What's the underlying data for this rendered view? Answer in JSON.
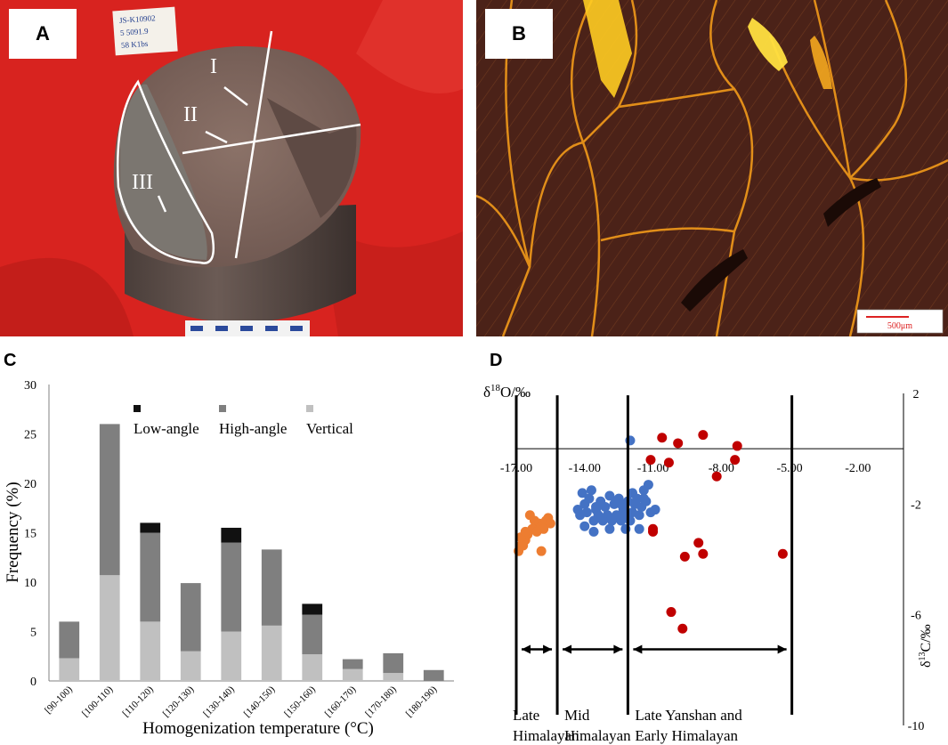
{
  "panels": {
    "A": {
      "label": "A",
      "tag_lines": [
        "JS-K10902",
        "5 5091.9",
        "58 K1bs"
      ],
      "zones": [
        "I",
        "II",
        "III"
      ]
    },
    "B": {
      "label": "B",
      "scale_bar": "500μm"
    },
    "C": {
      "label": "C"
    },
    "D": {
      "label": "D"
    }
  },
  "chart_data": [
    {
      "type": "bar",
      "stacked": true,
      "categories": [
        "[90-100)",
        "[100-110)",
        "[110-120)",
        "[120-130)",
        "[130-140)",
        "[140-150)",
        "[150-160)",
        "[160-170)",
        "[170-180)",
        "[180-190)"
      ],
      "series": [
        {
          "name": "Vertical",
          "color": "#c0c0c0",
          "values": [
            2.3,
            10.7,
            6.0,
            3.0,
            5.0,
            5.6,
            2.7,
            1.2,
            0.8,
            0
          ]
        },
        {
          "name": "High-angle",
          "color": "#7f7f7f",
          "values": [
            3.7,
            15.3,
            9.0,
            6.9,
            9.0,
            7.7,
            4.0,
            1.0,
            2.0,
            1.1
          ]
        },
        {
          "name": "Low-angle",
          "color": "#111111",
          "values": [
            0,
            0,
            1.0,
            0,
            1.5,
            0,
            1.1,
            0,
            0,
            0
          ]
        }
      ],
      "xlabel": "Homogenization temperature (°C)",
      "ylabel": "Frequency (%)",
      "ylim": [
        0,
        30
      ],
      "yticks": [
        "0",
        "5",
        "10",
        "15",
        "20",
        "25",
        "30"
      ],
      "legend_position": "top-center"
    },
    {
      "type": "scatter",
      "xlabel": "δ18O/‰",
      "ylabel": "δ13C/‰",
      "xlim": [
        -17,
        0
      ],
      "ylim": [
        -10,
        2
      ],
      "xtick_values": [
        -17,
        -14,
        -11,
        -8,
        -5,
        -2
      ],
      "xticks": [
        "-17.00",
        "-14.00",
        "-11.00",
        "-8.00",
        "-5.00",
        "-2.00"
      ],
      "ytick_values": [
        2,
        -2,
        -6,
        -10
      ],
      "yticks": [
        "2",
        "-2",
        "-6",
        "-10"
      ],
      "divider_x": [
        -17.0,
        -15.2,
        -12.1,
        -4.9
      ],
      "stage_labels": [
        {
          "line1": "Late",
          "line2": "Himalayan",
          "x_from": -17.0,
          "x_to": -15.2
        },
        {
          "line1": "Mid",
          "line2": "Himalayan",
          "x_from": -15.2,
          "x_to": -12.1
        },
        {
          "line1": "Late Yanshan and",
          "line2": "Early Himalayan",
          "x_from": -12.1,
          "x_to": -4.9
        }
      ],
      "series": [
        {
          "color": "#ed7d31",
          "points": [
            [
              -16.4,
              -2.4
            ],
            [
              -16.2,
              -2.6
            ],
            [
              -16.0,
              -2.7
            ],
            [
              -16.1,
              -2.9
            ],
            [
              -15.9,
              -2.8
            ],
            [
              -15.6,
              -2.5
            ],
            [
              -15.7,
              -2.6
            ],
            [
              -15.5,
              -2.7
            ],
            [
              -15.8,
              -2.9
            ],
            [
              -16.3,
              -2.9
            ],
            [
              -16.5,
              -3.1
            ],
            [
              -16.6,
              -3.3
            ],
            [
              -16.8,
              -3.5
            ],
            [
              -16.9,
              -3.7
            ],
            [
              -16.7,
              -3.5
            ],
            [
              -16.8,
              -3.2
            ],
            [
              -16.1,
              -3.0
            ],
            [
              -15.9,
              -3.7
            ],
            [
              -16.6,
              -3.0
            ]
          ]
        },
        {
          "color": "#4472c4",
          "points": [
            [
              -14.0,
              -2.0
            ],
            [
              -13.8,
              -1.8
            ],
            [
              -13.5,
              -2.2
            ],
            [
              -13.3,
              -1.9
            ],
            [
              -13.1,
              -2.1
            ],
            [
              -12.9,
              -1.7
            ],
            [
              -12.7,
              -2.0
            ],
            [
              -12.5,
              -1.8
            ],
            [
              -12.3,
              -2.2
            ],
            [
              -12.1,
              -1.9
            ],
            [
              -11.9,
              -1.6
            ],
            [
              -11.7,
              -1.8
            ],
            [
              -11.5,
              -2.1
            ],
            [
              -11.3,
              -1.9
            ],
            [
              -11.1,
              -2.3
            ],
            [
              -11.4,
              -1.5
            ],
            [
              -11.6,
              -2.4
            ],
            [
              -11.8,
              -2.0
            ],
            [
              -12.0,
              -2.6
            ],
            [
              -12.2,
              -2.4
            ],
            [
              -12.4,
              -2.6
            ],
            [
              -12.6,
              -2.4
            ],
            [
              -12.8,
              -2.6
            ],
            [
              -13.0,
              -2.4
            ],
            [
              -13.2,
              -2.6
            ],
            [
              -13.4,
              -2.4
            ],
            [
              -13.6,
              -2.6
            ],
            [
              -13.9,
              -2.3
            ],
            [
              -14.2,
              -2.4
            ],
            [
              -14.3,
              -2.2
            ],
            [
              -14.1,
              -1.6
            ],
            [
              -13.7,
              -1.5
            ],
            [
              -12.9,
              -2.9
            ],
            [
              -11.6,
              -2.9
            ],
            [
              -12.2,
              -2.9
            ],
            [
              -13.5,
              -2.1
            ],
            [
              -12.6,
              -1.9
            ],
            [
              -11.9,
              -2.3
            ],
            [
              -11.4,
              -1.8
            ],
            [
              -10.9,
              -2.2
            ],
            [
              -12.0,
              0.3
            ],
            [
              -11.2,
              -1.3
            ],
            [
              -13.6,
              -3.0
            ],
            [
              -14.0,
              -2.8
            ],
            [
              -12.4,
              -2.0
            ]
          ]
        },
        {
          "color": "#c00000",
          "points": [
            [
              -10.6,
              0.4
            ],
            [
              -9.9,
              0.2
            ],
            [
              -8.8,
              0.5
            ],
            [
              -7.3,
              0.1
            ],
            [
              -7.4,
              -0.4
            ],
            [
              -10.3,
              -0.5
            ],
            [
              -11.1,
              -0.4
            ],
            [
              -8.2,
              -1.0
            ],
            [
              -11.0,
              -2.9
            ],
            [
              -9.0,
              -3.4
            ],
            [
              -9.6,
              -3.9
            ],
            [
              -8.8,
              -3.8
            ],
            [
              -5.3,
              -3.8
            ],
            [
              -10.2,
              -5.9
            ],
            [
              -9.7,
              -6.5
            ],
            [
              -11.0,
              -3.0
            ]
          ]
        }
      ]
    }
  ]
}
